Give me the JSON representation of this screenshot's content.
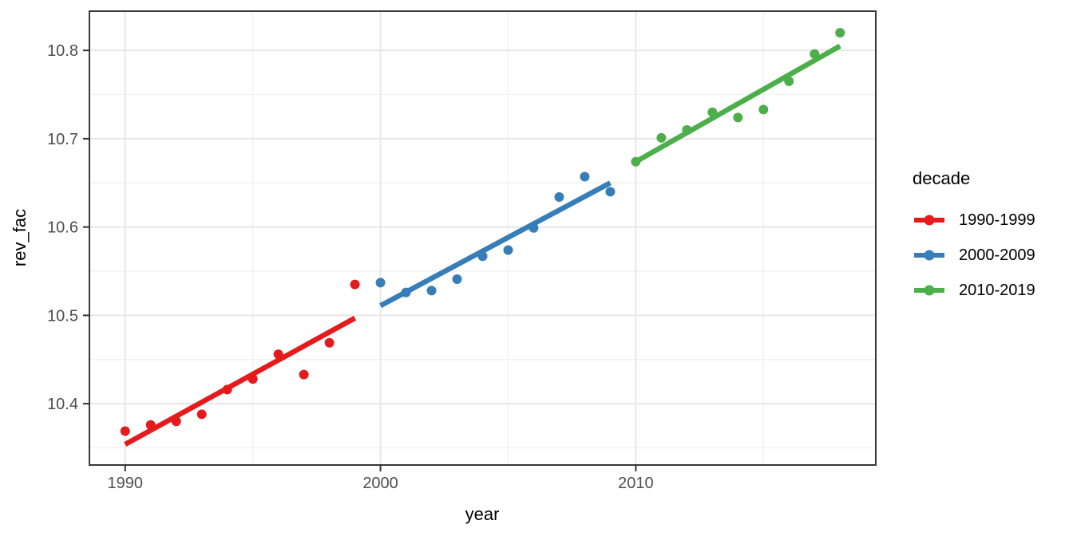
{
  "chart_data": {
    "type": "scatter",
    "title": "",
    "xlabel": "year",
    "ylabel": "rev_fac",
    "xlim": [
      1988.6,
      2019.4
    ],
    "ylim": [
      10.3306,
      10.8444
    ],
    "grid": true,
    "x_ticks": [
      1990,
      2000,
      2010
    ],
    "x_tick_labels": [
      "1990",
      "2000",
      "2010"
    ],
    "x_minor_ticks": [
      1995,
      2005,
      2015
    ],
    "y_ticks": [
      10.4,
      10.5,
      10.6,
      10.7,
      10.8
    ],
    "y_tick_labels": [
      "10.4",
      "10.5",
      "10.6",
      "10.7",
      "10.8"
    ],
    "y_minor_ticks": [
      10.35,
      10.45,
      10.55,
      10.65,
      10.75
    ],
    "legend": {
      "title": "decade",
      "position": "right"
    },
    "style": {
      "background": "#FFFFFF",
      "panel_border": "#383838",
      "grid_major": "#E7E7E7",
      "grid_minor": "#F2F2F2",
      "tick_mark": "#333333",
      "axis_text": "#4D4D4D",
      "text_color": "#000000"
    },
    "series": [
      {
        "name": "1990-1999",
        "color": "#E41A1C",
        "points": {
          "x": [
            1990,
            1991,
            1992,
            1993,
            1994,
            1995,
            1996,
            1997,
            1998,
            1999
          ],
          "y": [
            10.369,
            10.376,
            10.38,
            10.388,
            10.416,
            10.428,
            10.456,
            10.433,
            10.469,
            10.535
          ]
        },
        "trend": {
          "x": [
            1990,
            1999
          ],
          "y": [
            10.354,
            10.497
          ]
        }
      },
      {
        "name": "2000-2009",
        "color": "#377EB8",
        "points": {
          "x": [
            2000,
            2001,
            2002,
            2003,
            2004,
            2005,
            2006,
            2007,
            2008,
            2009
          ],
          "y": [
            10.537,
            10.526,
            10.528,
            10.541,
            10.567,
            10.574,
            10.599,
            10.634,
            10.657,
            10.64
          ]
        },
        "trend": {
          "x": [
            2000,
            2009
          ],
          "y": [
            10.511,
            10.65
          ]
        }
      },
      {
        "name": "2010-2019",
        "color": "#4DAF4A",
        "points": {
          "x": [
            2010,
            2011,
            2012,
            2013,
            2014,
            2015,
            2016,
            2017,
            2018
          ],
          "y": [
            10.674,
            10.701,
            10.71,
            10.73,
            10.724,
            10.733,
            10.765,
            10.796,
            10.82
          ]
        },
        "trend": {
          "x": [
            2010,
            2018
          ],
          "y": [
            10.674,
            10.805
          ]
        }
      }
    ]
  }
}
